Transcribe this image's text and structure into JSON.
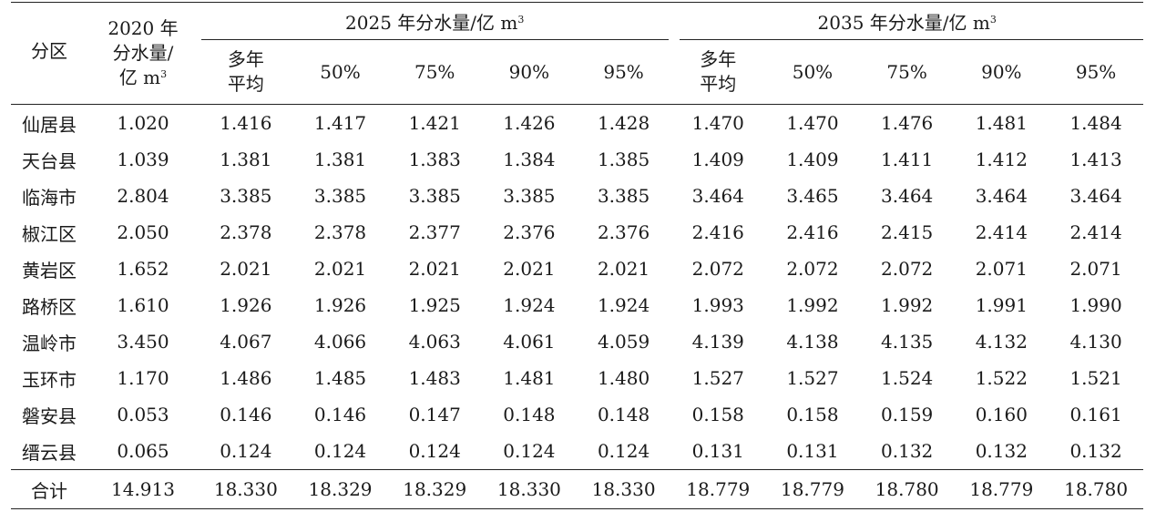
{
  "header": {
    "region": "分区",
    "col_2020": [
      "2020 年",
      "分水量/",
      "亿 m"
    ],
    "col_2020_sup": "3",
    "group_2025": "2025 年分水量/亿 m",
    "group_2025_sup": "3",
    "group_2035": "2035 年分水量/亿 m",
    "group_2035_sup": "3",
    "sub_avg": [
      "多年",
      "平均"
    ],
    "sub_cols": [
      "50%",
      "75%",
      "90%",
      "95%"
    ]
  },
  "rows": [
    {
      "region": "仙居县",
      "v2020": "1.020",
      "v2025": [
        "1.416",
        "1.417",
        "1.421",
        "1.426",
        "1.428"
      ],
      "v2035": [
        "1.470",
        "1.470",
        "1.476",
        "1.481",
        "1.484"
      ]
    },
    {
      "region": "天台县",
      "v2020": "1.039",
      "v2025": [
        "1.381",
        "1.381",
        "1.383",
        "1.384",
        "1.385"
      ],
      "v2035": [
        "1.409",
        "1.409",
        "1.411",
        "1.412",
        "1.413"
      ]
    },
    {
      "region": "临海市",
      "v2020": "2.804",
      "v2025": [
        "3.385",
        "3.385",
        "3.385",
        "3.385",
        "3.385"
      ],
      "v2035": [
        "3.464",
        "3.465",
        "3.464",
        "3.464",
        "3.464"
      ]
    },
    {
      "region": "椒江区",
      "v2020": "2.050",
      "v2025": [
        "2.378",
        "2.378",
        "2.377",
        "2.376",
        "2.376"
      ],
      "v2035": [
        "2.416",
        "2.416",
        "2.415",
        "2.414",
        "2.414"
      ]
    },
    {
      "region": "黄岩区",
      "v2020": "1.652",
      "v2025": [
        "2.021",
        "2.021",
        "2.021",
        "2.021",
        "2.021"
      ],
      "v2035": [
        "2.072",
        "2.072",
        "2.072",
        "2.071",
        "2.071"
      ]
    },
    {
      "region": "路桥区",
      "v2020": "1.610",
      "v2025": [
        "1.926",
        "1.926",
        "1.925",
        "1.924",
        "1.924"
      ],
      "v2035": [
        "1.993",
        "1.992",
        "1.992",
        "1.991",
        "1.990"
      ]
    },
    {
      "region": "温岭市",
      "v2020": "3.450",
      "v2025": [
        "4.067",
        "4.066",
        "4.063",
        "4.061",
        "4.059"
      ],
      "v2035": [
        "4.139",
        "4.138",
        "4.135",
        "4.132",
        "4.130"
      ]
    },
    {
      "region": "玉环市",
      "v2020": "1.170",
      "v2025": [
        "1.486",
        "1.485",
        "1.483",
        "1.481",
        "1.480"
      ],
      "v2035": [
        "1.527",
        "1.527",
        "1.524",
        "1.522",
        "1.521"
      ]
    },
    {
      "region": "磐安县",
      "v2020": "0.053",
      "v2025": [
        "0.146",
        "0.146",
        "0.147",
        "0.148",
        "0.148"
      ],
      "v2035": [
        "0.158",
        "0.158",
        "0.159",
        "0.160",
        "0.161"
      ]
    },
    {
      "region": "缙云县",
      "v2020": "0.065",
      "v2025": [
        "0.124",
        "0.124",
        "0.124",
        "0.124",
        "0.124"
      ],
      "v2035": [
        "0.131",
        "0.131",
        "0.132",
        "0.132",
        "0.132"
      ]
    }
  ],
  "total": {
    "region": "合计",
    "v2020": "14.913",
    "v2025": [
      "18.330",
      "18.329",
      "18.329",
      "18.330",
      "18.330"
    ],
    "v2035": [
      "18.779",
      "18.779",
      "18.780",
      "18.779",
      "18.780"
    ]
  }
}
